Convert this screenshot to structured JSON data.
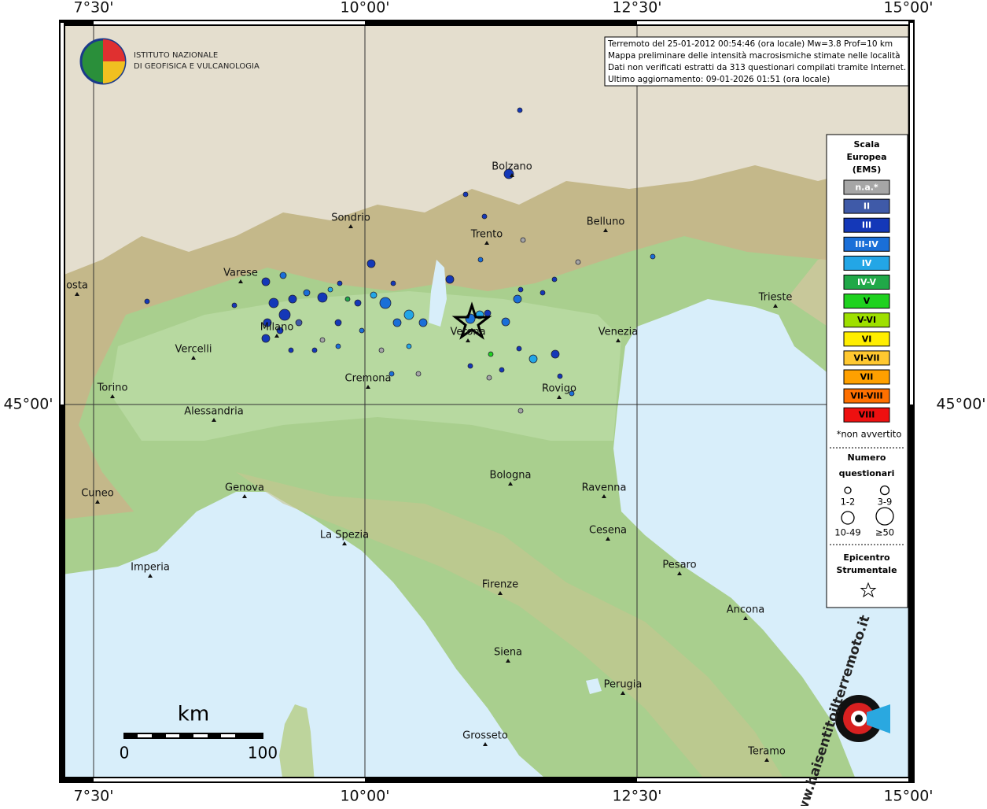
{
  "logo": {
    "line1": "ISTITUTO NAZIONALE",
    "line2": "DI GEOFISICA E VULCANOLOGIA"
  },
  "info": [
    "Terremoto del 25-01-2012 00:54:46 (ora locale) Mw=3.8 Prof=10 km",
    "Mappa preliminare delle intensità macrosismiche stimate nelle località",
    "Dati non verificati estratti da 313 questionari compilati tramite Internet.",
    "Ultimo aggiornamento: 09-01-2026 01:51 (ora locale)"
  ],
  "axes": {
    "top": [
      "7°30'",
      "10°00'",
      "12°30'",
      "15°00'"
    ],
    "bottom": [
      "7°30'",
      "10°00'",
      "12°30'",
      "15°00'"
    ],
    "left": "45°00'",
    "right": "45°00'"
  },
  "cities": [
    "Bolzano",
    "Sondrio",
    "Trento",
    "Belluno",
    "Varese",
    "osta",
    "Trieste",
    "Milano",
    "Verona",
    "Venezia",
    "Vercelli",
    "Cremona",
    "Torino",
    "Rovigo",
    "Alessandria",
    "Cuneo",
    "Genova",
    "Bologna",
    "Ravenna",
    "La Spezia",
    "Cesena",
    "Imperia",
    "Pesaro",
    "Firenze",
    "Ancona",
    "Siena",
    "Perugia",
    "Grosseto",
    "Teramo"
  ],
  "legend": {
    "title": [
      "Scala",
      "Europea",
      "(EMS)"
    ],
    "items": [
      {
        "label": "n.a.*",
        "color": "#a6a6a6"
      },
      {
        "label": "II",
        "color": "#3f5aa8"
      },
      {
        "label": "III",
        "color": "#1438b8"
      },
      {
        "label": "III-IV",
        "color": "#1a6fd8"
      },
      {
        "label": "IV",
        "color": "#23a6e6"
      },
      {
        "label": "IV-V",
        "color": "#20a848"
      },
      {
        "label": "V",
        "color": "#1fd21f"
      },
      {
        "label": "V-VI",
        "color": "#9ee000"
      },
      {
        "label": "VI",
        "color": "#ffee00"
      },
      {
        "label": "VI-VII",
        "color": "#ffc830"
      },
      {
        "label": "VII",
        "color": "#ffa000"
      },
      {
        "label": "VII-VIII",
        "color": "#ff7000"
      },
      {
        "label": "VIII",
        "color": "#ee1010"
      }
    ],
    "note": "*non avvertito",
    "count_title": [
      "Numero",
      "questionari"
    ],
    "count_labels": [
      "1-2",
      "3-9",
      "10-49",
      "≥50"
    ],
    "epicenter_title": [
      "Epicentro",
      "Strumentale"
    ]
  },
  "scalebar": {
    "unit": "km",
    "start": "0",
    "end": "100"
  },
  "brand": "www.haisentitoilterremoto.it"
}
